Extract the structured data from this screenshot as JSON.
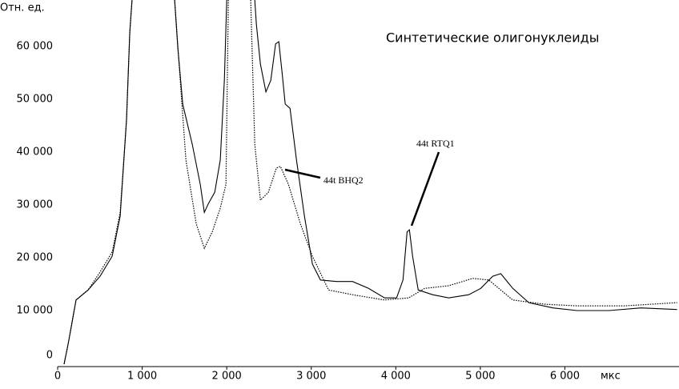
{
  "chart_data": {
    "type": "line",
    "title": "Синтетические олигонуклеиды",
    "y_label": "Отн. ед.",
    "x_label": "мкс",
    "annotations": [
      "44t RTQ1",
      "44t BHQ2"
    ],
    "xlim": [
      0,
      7350
    ],
    "ylim": [
      0,
      69400
    ],
    "xticks": [
      0,
      {
        "value": 1000,
        "label": "1 000"
      },
      {
        "value": 2000,
        "label": "2 000"
      },
      {
        "value": 3000,
        "label": "3 000"
      },
      {
        "value": 4000,
        "label": "4 000"
      },
      {
        "value": 5000,
        "label": "5 000"
      },
      {
        "value": 6000,
        "label": "6 000"
      }
    ],
    "yticks": [
      0,
      {
        "value": 10000,
        "label": "10 000"
      },
      {
        "value": 20000,
        "label": "20 000"
      },
      {
        "value": 30000,
        "label": "30 000"
      },
      {
        "value": 40000,
        "label": "40 000"
      },
      {
        "value": 50000,
        "label": "50 000"
      },
      {
        "value": 60000,
        "label": "60 000"
      }
    ],
    "grid": false,
    "series": [
      {
        "color": "#000000",
        "line_style": "solid",
        "x": [
          76,
          123,
          218,
          360,
          502,
          645,
          740,
          815,
          853,
          880,
          null,
          1384,
          1422,
          1479,
          1592,
          1687,
          1735,
          1782,
          1858,
          1924,
          1972,
          2000,
          null,
          2332,
          2351,
          2398,
          2464,
          2521,
          2578,
          2616,
          2654,
          2692,
          2749,
          2825,
          2919,
          3014,
          3109,
          3299,
          3488,
          3678,
          3867,
          4009,
          4085,
          4133,
          4161,
          4199,
          4265,
          4436,
          4626,
          4863,
          5005,
          5147,
          5242,
          5384,
          5573,
          5858,
          6142,
          6521,
          6900,
          7327
        ],
        "values": [
          450,
          4200,
          12600,
          14500,
          17100,
          20900,
          28500,
          46700,
          63300,
          69400,
          null,
          69400,
          60300,
          49700,
          42100,
          34500,
          29200,
          30800,
          33000,
          39100,
          54200,
          69400,
          null,
          69400,
          64800,
          57300,
          52000,
          54200,
          61100,
          61500,
          55800,
          49700,
          48900,
          39100,
          28500,
          19400,
          16400,
          16100,
          16100,
          14800,
          13000,
          13000,
          16400,
          25500,
          25900,
          20900,
          14500,
          13600,
          13000,
          13600,
          14800,
          17100,
          17600,
          14800,
          12100,
          11100,
          10600,
          10600,
          11100,
          10800
        ]
      },
      {
        "color": "#000000",
        "line_style": "dotted",
        "x": [
          76,
          123,
          218,
          360,
          502,
          645,
          740,
          815,
          853,
          880,
          null,
          1384,
          1450,
          1517,
          1640,
          1735,
          1829,
          1924,
          1991,
          2019,
          null,
          2284,
          2332,
          2398,
          2493,
          2588,
          2635,
          2730,
          2872,
          3014,
          3204,
          3488,
          3867,
          4152,
          4341,
          4626,
          4910,
          5100,
          5384,
          5763,
          6142,
          6711,
          7327
        ],
        "values": [
          450,
          4200,
          12600,
          14500,
          17900,
          21700,
          29200,
          46700,
          63300,
          69400,
          null,
          69400,
          54200,
          39100,
          27000,
          22400,
          25500,
          30000,
          34500,
          69400,
          null,
          69400,
          42100,
          31500,
          33000,
          37600,
          37900,
          34500,
          27000,
          20900,
          14500,
          13600,
          12600,
          13000,
          14800,
          15300,
          16700,
          16400,
          12600,
          11800,
          11500,
          11500,
          12100
        ]
      }
    ]
  }
}
